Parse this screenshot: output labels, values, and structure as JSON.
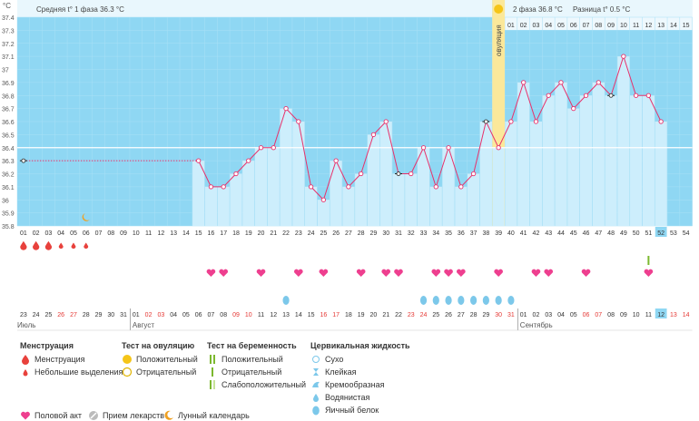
{
  "units": "°C",
  "summary": {
    "phase1_label": "Средняя t° 1 фаза",
    "phase1_value": "36.3 °C",
    "phase2_label": "2 фаза",
    "phase2_value": "36.8 °C",
    "diff_label": "Разница t°",
    "diff_value": "0.5 °C"
  },
  "ovulation_label": "овуляция",
  "cycle_months": [
    "Июль",
    "Август",
    "Сентябрь"
  ],
  "chart_data": {
    "type": "line",
    "ylim": [
      35.8,
      37.4
    ],
    "y_ticks": [
      "37.4",
      "37.3",
      "37.2",
      "37.1",
      "37",
      "36.9",
      "36.8",
      "36.7",
      "36.6",
      "36.5",
      "36.4",
      "36.3",
      "36.2",
      "36.1",
      "36",
      "35.9",
      "35.8"
    ],
    "cycle_days": [
      "01",
      "02",
      "03",
      "04",
      "05",
      "06",
      "07",
      "08",
      "09",
      "10",
      "11",
      "12",
      "13",
      "14",
      "15",
      "16",
      "17",
      "18",
      "19",
      "20",
      "21",
      "22",
      "23",
      "24",
      "25",
      "26",
      "27",
      "28",
      "29",
      "30",
      "31",
      "32",
      "33",
      "34",
      "35",
      "36",
      "37",
      "38",
      "39",
      "40",
      "41",
      "42",
      "43",
      "44",
      "45",
      "46",
      "47",
      "48",
      "49",
      "50",
      "51",
      "52",
      "53",
      "54"
    ],
    "post_ovulation_days": [
      "01",
      "02",
      "03",
      "04",
      "05",
      "06",
      "07",
      "08",
      "09",
      "10",
      "11",
      "12",
      "13",
      "14",
      "15"
    ],
    "dates": [
      "23",
      "24",
      "25",
      "26",
      "27",
      "28",
      "29",
      "30",
      "31",
      "01",
      "02",
      "03",
      "04",
      "05",
      "06",
      "07",
      "08",
      "09",
      "10",
      "11",
      "12",
      "13",
      "14",
      "15",
      "16",
      "17",
      "18",
      "19",
      "20",
      "21",
      "22",
      "23",
      "24",
      "25",
      "26",
      "27",
      "28",
      "29",
      "30",
      "31",
      "01",
      "02",
      "03",
      "04",
      "05",
      "06",
      "07",
      "08",
      "09",
      "10",
      "11",
      "12",
      "13",
      "14"
    ],
    "weekend_date_indices": [
      3,
      4,
      10,
      11,
      17,
      18,
      24,
      25,
      31,
      32,
      38,
      39,
      45,
      46,
      52,
      53
    ],
    "temperature": [
      36.3,
      null,
      null,
      null,
      null,
      null,
      null,
      null,
      null,
      null,
      null,
      null,
      null,
      null,
      36.3,
      36.1,
      36.1,
      36.2,
      36.3,
      36.4,
      36.4,
      36.7,
      36.6,
      36.1,
      36.0,
      36.3,
      36.1,
      36.2,
      36.5,
      36.6,
      36.2,
      36.2,
      36.4,
      36.1,
      36.4,
      36.1,
      36.2,
      36.6,
      36.4,
      36.6,
      36.9,
      36.6,
      36.8,
      36.9,
      36.7,
      36.8,
      36.9,
      36.8,
      37.1,
      36.8,
      36.8,
      36.6
    ],
    "hollow_days": [
      1,
      31,
      38,
      48
    ],
    "coverline": 36.4,
    "average_line_value": 36.3,
    "ovulation_day": 39,
    "current_day": 52,
    "menstruation_days": [
      1,
      2,
      3
    ],
    "light_discharge_days": [
      4,
      5,
      6
    ],
    "moon_day": 6,
    "intercourse_days": [
      16,
      17,
      20,
      23,
      25,
      28,
      30,
      31,
      34,
      35,
      36,
      39,
      42,
      43,
      46,
      51
    ],
    "positive_pregnancy_test_day": 51,
    "egg_white_days": [
      22,
      33,
      34,
      35,
      36,
      37,
      38,
      39,
      40
    ]
  },
  "legend": {
    "menstruation": {
      "title": "Менструация",
      "items": [
        "Менструация",
        "Небольшие выделения"
      ]
    },
    "ovulation_test": {
      "title": "Тест на овуляцию",
      "items": [
        "Положительный",
        "Отрицательный"
      ]
    },
    "pregnancy_test": {
      "title": "Тест на беременность",
      "items": [
        "Положительный",
        "Отрицательный",
        "Слабоположительный"
      ]
    },
    "cervical_fluid": {
      "title": "Цервикальная жидкость",
      "items": [
        "Сухо",
        "Клейкая",
        "Кремообразная",
        "Водянистая",
        "Яичный белок"
      ]
    },
    "bottom": [
      "Половой акт",
      "Прием лекарств",
      "Лунный календарь"
    ]
  },
  "colors": {
    "grid_bg": "#8fd7f3",
    "bar_fill": "#cdeefc",
    "line": "#e8316b",
    "ovulation": "#fbe89a",
    "heart": "#ee3f8f",
    "drop": "#e8413c",
    "egg_white": "#7cc8ea",
    "weekend": "#e53935"
  }
}
